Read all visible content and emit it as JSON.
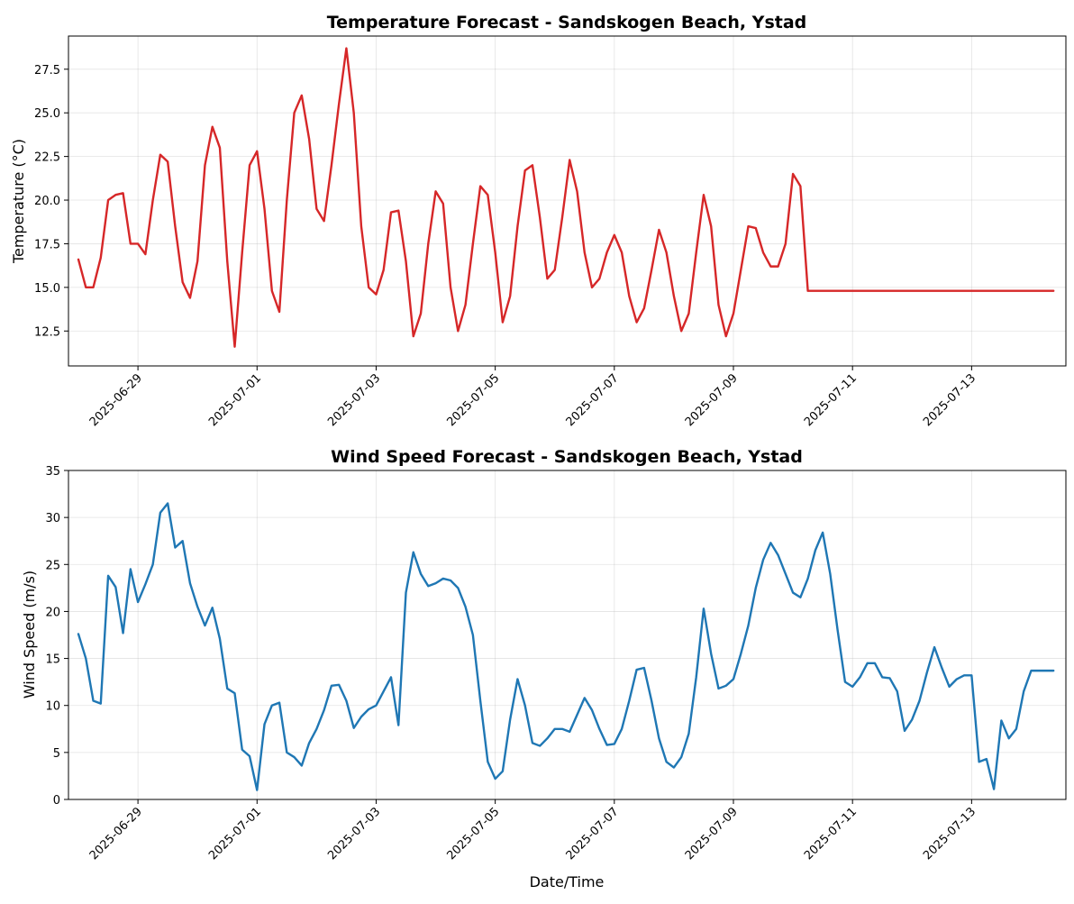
{
  "figure": {
    "background": "#ffffff"
  },
  "chart_data": [
    {
      "type": "line",
      "title": "Temperature Forecast - Sandskogen Beach, Ystad",
      "xlabel": "",
      "ylabel": "Temperature (°C)",
      "xlim": [
        "2025-06-27T20:00",
        "2025-07-14T14:00"
      ],
      "ylim": [
        10.5,
        29.4
      ],
      "yticks": [
        12.5,
        15.0,
        17.5,
        20.0,
        22.5,
        25.0,
        27.5
      ],
      "ytick_labels": [
        "12.5",
        "15.0",
        "17.5",
        "20.0",
        "22.5",
        "25.0",
        "27.5"
      ],
      "xticks": [
        "2025-06-29",
        "2025-07-01",
        "2025-07-03",
        "2025-07-05",
        "2025-07-07",
        "2025-07-09",
        "2025-07-11",
        "2025-07-13"
      ],
      "grid": true,
      "legend": "none",
      "color": "#d62728",
      "series": [
        {
          "x": [
            "2025-06-28T00:00",
            "2025-06-28T03:00",
            "2025-06-28T06:00",
            "2025-06-28T09:00",
            "2025-06-28T12:00",
            "2025-06-28T15:00",
            "2025-06-28T18:00",
            "2025-06-28T21:00",
            "2025-06-29T00:00",
            "2025-06-29T03:00",
            "2025-06-29T06:00",
            "2025-06-29T09:00",
            "2025-06-29T12:00",
            "2025-06-29T15:00",
            "2025-06-29T18:00",
            "2025-06-29T21:00",
            "2025-06-30T00:00",
            "2025-06-30T03:00",
            "2025-06-30T06:00",
            "2025-06-30T09:00",
            "2025-06-30T12:00",
            "2025-06-30T15:00",
            "2025-06-30T18:00",
            "2025-06-30T21:00",
            "2025-07-01T00:00",
            "2025-07-01T03:00",
            "2025-07-01T06:00",
            "2025-07-01T09:00",
            "2025-07-01T12:00",
            "2025-07-01T15:00",
            "2025-07-01T18:00",
            "2025-07-01T21:00",
            "2025-07-02T00:00",
            "2025-07-02T03:00",
            "2025-07-02T06:00",
            "2025-07-02T09:00",
            "2025-07-02T12:00",
            "2025-07-02T15:00",
            "2025-07-02T18:00",
            "2025-07-02T21:00",
            "2025-07-03T00:00",
            "2025-07-03T03:00",
            "2025-07-03T06:00",
            "2025-07-03T09:00",
            "2025-07-03T12:00",
            "2025-07-03T15:00",
            "2025-07-03T18:00",
            "2025-07-03T21:00",
            "2025-07-04T00:00",
            "2025-07-04T03:00",
            "2025-07-04T06:00",
            "2025-07-04T09:00",
            "2025-07-04T12:00",
            "2025-07-04T15:00",
            "2025-07-04T18:00",
            "2025-07-04T21:00",
            "2025-07-05T00:00",
            "2025-07-05T03:00",
            "2025-07-05T06:00",
            "2025-07-05T09:00",
            "2025-07-05T12:00",
            "2025-07-05T15:00",
            "2025-07-05T18:00",
            "2025-07-05T21:00",
            "2025-07-06T00:00",
            "2025-07-06T03:00",
            "2025-07-06T06:00",
            "2025-07-06T09:00",
            "2025-07-06T12:00",
            "2025-07-06T15:00",
            "2025-07-06T18:00",
            "2025-07-06T21:00",
            "2025-07-07T00:00",
            "2025-07-07T03:00",
            "2025-07-07T06:00",
            "2025-07-07T09:00",
            "2025-07-07T12:00",
            "2025-07-07T15:00",
            "2025-07-07T18:00",
            "2025-07-07T21:00",
            "2025-07-08T00:00",
            "2025-07-08T03:00",
            "2025-07-08T06:00",
            "2025-07-08T09:00",
            "2025-07-08T12:00",
            "2025-07-08T15:00",
            "2025-07-08T18:00",
            "2025-07-08T21:00",
            "2025-07-09T00:00",
            "2025-07-09T03:00",
            "2025-07-09T06:00",
            "2025-07-09T09:00",
            "2025-07-09T12:00",
            "2025-07-09T15:00",
            "2025-07-09T18:00",
            "2025-07-09T21:00",
            "2025-07-10T00:00",
            "2025-07-10T03:00",
            "2025-07-10T06:00",
            "2025-07-10T09:00",
            "2025-07-10T12:00",
            "2025-07-10T15:00",
            "2025-07-10T18:00",
            "2025-07-10T21:00",
            "2025-07-11T00:00",
            "2025-07-11T03:00",
            "2025-07-11T06:00",
            "2025-07-11T09:00",
            "2025-07-11T12:00",
            "2025-07-11T15:00",
            "2025-07-11T18:00",
            "2025-07-11T21:00",
            "2025-07-12T00:00",
            "2025-07-12T03:00",
            "2025-07-12T06:00",
            "2025-07-12T09:00",
            "2025-07-12T12:00",
            "2025-07-12T15:00",
            "2025-07-12T18:00",
            "2025-07-12T21:00",
            "2025-07-13T00:00",
            "2025-07-13T03:00",
            "2025-07-13T06:00",
            "2025-07-13T09:00",
            "2025-07-13T12:00",
            "2025-07-13T15:00",
            "2025-07-13T18:00",
            "2025-07-13T21:00",
            "2025-07-14T00:00",
            "2025-07-14T03:00",
            "2025-07-14T06:00",
            "2025-07-14T09:00"
          ],
          "y": [
            16.6,
            15.0,
            15.0,
            16.7,
            20.0,
            20.3,
            20.4,
            17.5,
            17.5,
            16.9,
            20.0,
            22.6,
            22.2,
            18.5,
            15.3,
            14.4,
            16.5,
            22.0,
            24.2,
            23.0,
            16.5,
            11.6,
            17.0,
            22.0,
            22.8,
            19.5,
            14.8,
            13.6,
            20.0,
            25.0,
            26.0,
            23.5,
            19.5,
            18.8,
            22.0,
            25.5,
            28.7,
            25.0,
            18.5,
            15.0,
            14.6,
            16.0,
            19.3,
            19.4,
            16.5,
            12.2,
            13.5,
            17.5,
            20.5,
            19.8,
            15.0,
            12.5,
            14.0,
            17.5,
            20.8,
            20.3,
            17.0,
            13.0,
            14.5,
            18.5,
            21.7,
            22.0,
            19.0,
            15.5,
            16.0,
            19.0,
            22.3,
            20.5,
            17.0,
            15.0,
            15.5,
            17.0,
            18.0,
            17.0,
            14.5,
            13.0,
            13.8,
            16.0,
            18.3,
            17.0,
            14.5,
            12.5,
            13.5,
            17.0,
            20.3,
            18.5,
            14.0,
            12.2,
            13.5,
            16.0,
            18.5,
            18.4,
            17.0,
            16.2,
            16.2,
            17.5,
            21.5,
            20.8,
            14.8,
            14.8,
            14.8,
            14.8,
            14.8,
            14.8,
            14.8,
            14.8,
            14.8,
            14.8,
            14.8,
            14.8,
            14.8,
            14.8,
            14.8,
            14.8,
            14.8,
            14.8,
            14.8,
            14.8,
            14.8,
            14.8,
            14.8,
            14.8,
            14.8,
            14.8,
            14.8,
            14.8,
            14.8,
            14.8,
            14.8,
            14.8,
            14.8,
            14.8
          ]
        }
      ]
    },
    {
      "type": "line",
      "title": "Wind Speed Forecast - Sandskogen Beach, Ystad",
      "xlabel": "Date/Time",
      "ylabel": "Wind Speed (m/s)",
      "xlim": [
        "2025-06-27T20:00",
        "2025-07-14T14:00"
      ],
      "ylim": [
        0,
        35
      ],
      "yticks": [
        0,
        5,
        10,
        15,
        20,
        25,
        30,
        35
      ],
      "ytick_labels": [
        "0",
        "5",
        "10",
        "15",
        "20",
        "25",
        "30",
        "35"
      ],
      "xticks": [
        "2025-06-29",
        "2025-07-01",
        "2025-07-03",
        "2025-07-05",
        "2025-07-07",
        "2025-07-09",
        "2025-07-11",
        "2025-07-13"
      ],
      "grid": true,
      "legend": "none",
      "color": "#1f77b4",
      "series": [
        {
          "x": [
            "2025-06-28T00:00",
            "2025-06-28T03:00",
            "2025-06-28T06:00",
            "2025-06-28T09:00",
            "2025-06-28T12:00",
            "2025-06-28T15:00",
            "2025-06-28T18:00",
            "2025-06-28T21:00",
            "2025-06-29T00:00",
            "2025-06-29T03:00",
            "2025-06-29T06:00",
            "2025-06-29T09:00",
            "2025-06-29T12:00",
            "2025-06-29T15:00",
            "2025-06-29T18:00",
            "2025-06-29T21:00",
            "2025-06-30T00:00",
            "2025-06-30T03:00",
            "2025-06-30T06:00",
            "2025-06-30T09:00",
            "2025-06-30T12:00",
            "2025-06-30T15:00",
            "2025-06-30T18:00",
            "2025-06-30T21:00",
            "2025-07-01T00:00",
            "2025-07-01T03:00",
            "2025-07-01T06:00",
            "2025-07-01T09:00",
            "2025-07-01T12:00",
            "2025-07-01T15:00",
            "2025-07-01T18:00",
            "2025-07-01T21:00",
            "2025-07-02T00:00",
            "2025-07-02T03:00",
            "2025-07-02T06:00",
            "2025-07-02T09:00",
            "2025-07-02T12:00",
            "2025-07-02T15:00",
            "2025-07-02T18:00",
            "2025-07-02T21:00",
            "2025-07-03T00:00",
            "2025-07-03T03:00",
            "2025-07-03T06:00",
            "2025-07-03T09:00",
            "2025-07-03T12:00",
            "2025-07-03T15:00",
            "2025-07-03T18:00",
            "2025-07-03T21:00",
            "2025-07-04T00:00",
            "2025-07-04T03:00",
            "2025-07-04T06:00",
            "2025-07-04T09:00",
            "2025-07-04T12:00",
            "2025-07-04T15:00",
            "2025-07-04T18:00",
            "2025-07-04T21:00",
            "2025-07-05T00:00",
            "2025-07-05T03:00",
            "2025-07-05T06:00",
            "2025-07-05T09:00",
            "2025-07-05T12:00",
            "2025-07-05T15:00",
            "2025-07-05T18:00",
            "2025-07-05T21:00",
            "2025-07-06T00:00",
            "2025-07-06T03:00",
            "2025-07-06T06:00",
            "2025-07-06T09:00",
            "2025-07-06T12:00",
            "2025-07-06T15:00",
            "2025-07-06T18:00",
            "2025-07-06T21:00",
            "2025-07-07T00:00",
            "2025-07-07T03:00",
            "2025-07-07T06:00",
            "2025-07-07T09:00",
            "2025-07-07T12:00",
            "2025-07-07T15:00",
            "2025-07-07T18:00",
            "2025-07-07T21:00",
            "2025-07-08T00:00",
            "2025-07-08T03:00",
            "2025-07-08T06:00",
            "2025-07-08T09:00",
            "2025-07-08T12:00",
            "2025-07-08T15:00",
            "2025-07-08T18:00",
            "2025-07-08T21:00",
            "2025-07-09T00:00",
            "2025-07-09T03:00",
            "2025-07-09T06:00",
            "2025-07-09T09:00",
            "2025-07-09T12:00",
            "2025-07-09T15:00",
            "2025-07-09T18:00",
            "2025-07-09T21:00",
            "2025-07-10T00:00",
            "2025-07-10T03:00",
            "2025-07-10T06:00",
            "2025-07-10T09:00",
            "2025-07-10T12:00",
            "2025-07-10T15:00",
            "2025-07-10T18:00",
            "2025-07-10T21:00",
            "2025-07-11T00:00",
            "2025-07-11T03:00",
            "2025-07-11T06:00",
            "2025-07-11T09:00",
            "2025-07-11T12:00",
            "2025-07-11T15:00",
            "2025-07-11T18:00",
            "2025-07-11T21:00",
            "2025-07-12T00:00",
            "2025-07-12T03:00",
            "2025-07-12T06:00",
            "2025-07-12T09:00",
            "2025-07-12T12:00",
            "2025-07-12T15:00",
            "2025-07-12T18:00",
            "2025-07-12T21:00",
            "2025-07-13T00:00",
            "2025-07-13T03:00",
            "2025-07-13T06:00",
            "2025-07-13T09:00",
            "2025-07-13T12:00",
            "2025-07-13T15:00",
            "2025-07-13T18:00",
            "2025-07-13T21:00",
            "2025-07-14T00:00",
            "2025-07-14T03:00",
            "2025-07-14T06:00",
            "2025-07-14T09:00"
          ],
          "y": [
            17.6,
            15.0,
            10.5,
            10.2,
            23.8,
            22.6,
            17.7,
            24.5,
            21.0,
            22.9,
            25.0,
            30.5,
            31.5,
            26.8,
            27.5,
            23.0,
            20.5,
            18.5,
            20.4,
            17.1,
            11.8,
            11.3,
            5.3,
            4.6,
            1.0,
            8.0,
            10.0,
            10.3,
            5.0,
            4.5,
            3.6,
            6.0,
            7.5,
            9.5,
            12.1,
            12.2,
            10.5,
            7.6,
            8.8,
            9.6,
            10.0,
            11.5,
            13.0,
            7.9,
            22.0,
            26.3,
            24.0,
            22.7,
            23.0,
            23.5,
            23.3,
            22.5,
            20.5,
            17.5,
            10.5,
            4.0,
            2.2,
            3.0,
            8.5,
            12.8,
            10.0,
            6.0,
            5.7,
            6.5,
            7.5,
            7.5,
            7.2,
            9.0,
            10.8,
            9.5,
            7.5,
            5.8,
            5.9,
            7.5,
            10.5,
            13.8,
            14.0,
            10.5,
            6.5,
            4.0,
            3.4,
            4.5,
            7.0,
            13.0,
            20.3,
            15.5,
            11.8,
            12.1,
            12.8,
            15.5,
            18.5,
            22.5,
            25.5,
            27.3,
            26.0,
            24.0,
            22.0,
            21.5,
            23.5,
            26.5,
            28.4,
            24.0,
            18.0,
            12.5,
            12.0,
            13.0,
            14.5,
            14.5,
            13.0,
            12.9,
            11.5,
            7.3,
            8.5,
            10.5,
            13.5,
            16.2,
            14.0,
            12.0,
            12.8,
            13.2,
            13.2,
            4.0,
            4.3,
            1.1,
            8.4,
            6.5,
            7.5,
            11.5,
            13.7,
            13.7,
            13.7,
            13.7
          ]
        }
      ]
    }
  ]
}
